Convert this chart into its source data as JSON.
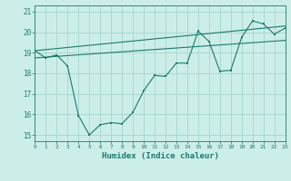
{
  "xlabel": "Humidex (Indice chaleur)",
  "bg_color": "#cceee8",
  "grid_color": "#aad8d0",
  "line_color": "#1a7a6e",
  "line1_x": [
    0,
    1,
    2,
    3,
    4,
    5,
    6,
    7,
    8,
    9,
    10,
    11,
    12,
    13,
    14,
    15,
    16,
    17,
    18,
    19,
    20,
    21,
    22,
    23
  ],
  "line1_y": [
    19.1,
    18.75,
    18.9,
    18.35,
    15.95,
    15.0,
    15.5,
    15.6,
    15.55,
    16.1,
    17.15,
    17.9,
    17.85,
    18.5,
    18.5,
    20.05,
    19.55,
    18.1,
    18.15,
    19.75,
    20.55,
    20.4,
    19.9,
    20.2
  ],
  "line2_x": [
    0,
    23
  ],
  "line2_y": [
    19.1,
    20.3
  ],
  "line3_x": [
    0,
    23
  ],
  "line3_y": [
    18.75,
    19.6
  ],
  "xlim": [
    0,
    23
  ],
  "ylim": [
    14.7,
    21.3
  ],
  "yticks": [
    15,
    16,
    17,
    18,
    19,
    20,
    21
  ],
  "xticks": [
    0,
    1,
    2,
    3,
    4,
    5,
    6,
    7,
    8,
    9,
    10,
    11,
    12,
    13,
    14,
    15,
    16,
    17,
    18,
    19,
    20,
    21,
    22,
    23
  ]
}
